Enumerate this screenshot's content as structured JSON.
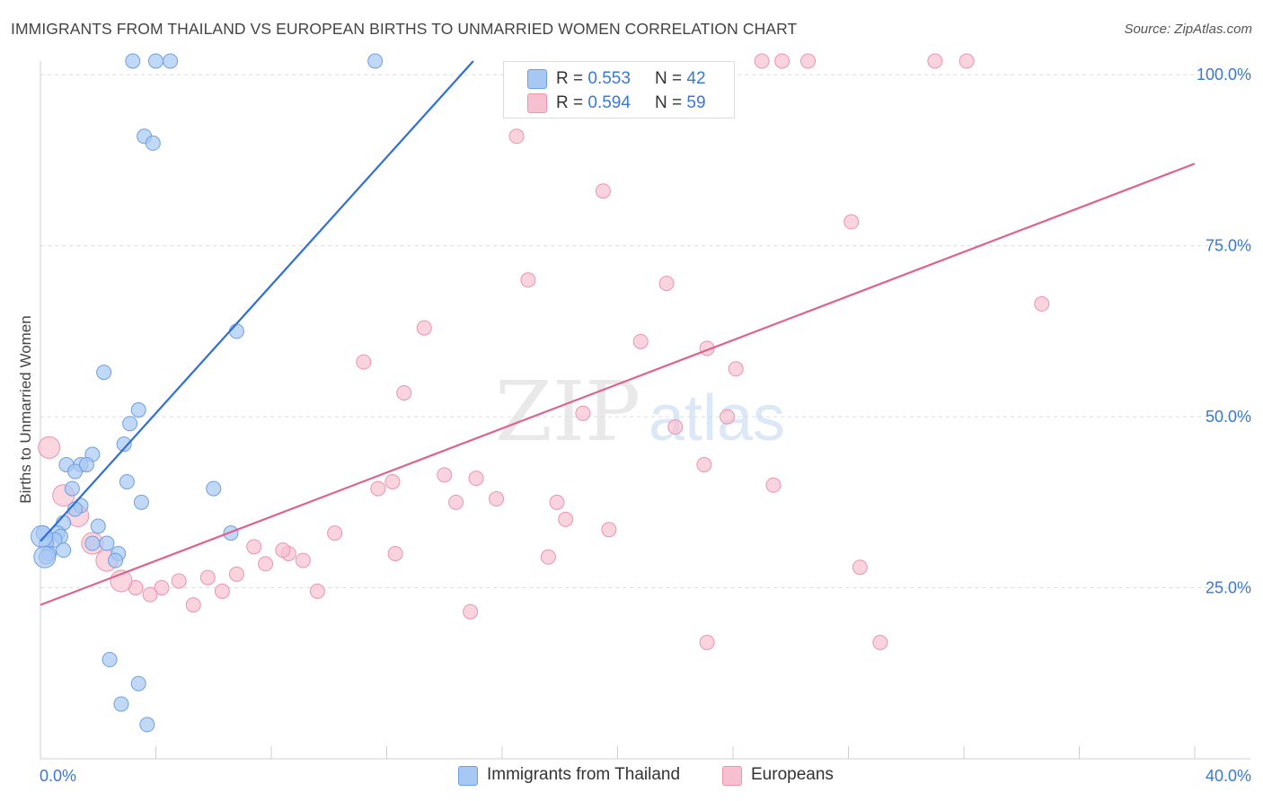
{
  "title": "IMMIGRANTS FROM THAILAND VS EUROPEAN BIRTHS TO UNMARRIED WOMEN CORRELATION CHART",
  "source": "Source: ZipAtlas.com",
  "watermark": {
    "zip": "ZIP",
    "atlas": "atlas"
  },
  "legend": {
    "rows": [
      {
        "r_label": "R =",
        "r_value": "0.553",
        "n_label": "N =",
        "n_value": "42",
        "color": "#a8c8f4"
      },
      {
        "r_label": "R =",
        "r_value": "0.594",
        "n_label": "N =",
        "n_value": "59",
        "color": "#f7b8cc"
      }
    ]
  },
  "bottom_legend": [
    {
      "label": "Immigrants from Thailand",
      "color": "#a8c8f4"
    },
    {
      "label": "Europeans",
      "color": "#f7b8cc"
    }
  ],
  "colors": {
    "blue_fill": "#a8c8f4",
    "blue_stroke": "#6e9fe0",
    "blue_line": "#2f6fd6",
    "pink_fill": "#f7c0d0",
    "pink_stroke": "#ec94b0",
    "pink_line": "#e0618c",
    "tick_text": "#3a78d6",
    "grid": "#dddddd"
  },
  "chart_data": {
    "type": "scatter",
    "title": "IMMIGRANTS FROM THAILAND VS EUROPEAN BIRTHS TO UNMARRIED WOMEN CORRELATION CHART",
    "xlabel": "",
    "ylabel": "Births to Unmarried Women",
    "xlim": [
      0,
      40
    ],
    "ylim": [
      0,
      102
    ],
    "x_tick_labels": [
      {
        "value": 0,
        "label": "0.0%"
      },
      {
        "value": 40,
        "label": "40.0%"
      }
    ],
    "y_tick_labels": [
      {
        "value": 25,
        "label": "25.0%"
      },
      {
        "value": 50,
        "label": "50.0%"
      },
      {
        "value": 75,
        "label": "75.0%"
      },
      {
        "value": 100,
        "label": "100.0%"
      }
    ],
    "grid": true,
    "legend_position": "top-center",
    "series": [
      {
        "name": "Immigrants from Thailand",
        "trend": [
          [
            0,
            31.8
          ],
          [
            15,
            102
          ]
        ],
        "points": [
          [
            3.2,
            102
          ],
          [
            4.0,
            102
          ],
          [
            4.5,
            102
          ],
          [
            11.6,
            102
          ],
          [
            3.6,
            91
          ],
          [
            3.9,
            90
          ],
          [
            6.8,
            62.5
          ],
          [
            2.2,
            56.5
          ],
          [
            3.4,
            51
          ],
          [
            3.1,
            49
          ],
          [
            2.9,
            46
          ],
          [
            1.8,
            44.5
          ],
          [
            0.9,
            43
          ],
          [
            1.4,
            43
          ],
          [
            1.2,
            42
          ],
          [
            1.6,
            43
          ],
          [
            3.0,
            40.5
          ],
          [
            6.0,
            39.5
          ],
          [
            1.1,
            39.5
          ],
          [
            3.5,
            37.5
          ],
          [
            1.4,
            37
          ],
          [
            1.2,
            36.5
          ],
          [
            0.8,
            34.5
          ],
          [
            2.0,
            34
          ],
          [
            0.6,
            33
          ],
          [
            0.1,
            33
          ],
          [
            0.7,
            32.5
          ],
          [
            0.5,
            32
          ],
          [
            0.2,
            31.5
          ],
          [
            6.6,
            33
          ],
          [
            1.8,
            31.5
          ],
          [
            2.3,
            31.5
          ],
          [
            0.8,
            30.5
          ],
          [
            2.7,
            30
          ],
          [
            0.3,
            30
          ],
          [
            0.2,
            29.5
          ],
          [
            2.6,
            29
          ],
          [
            2.4,
            14.5
          ],
          [
            3.4,
            11
          ],
          [
            2.8,
            8
          ],
          [
            3.7,
            5
          ]
        ],
        "big_points": [
          [
            0.05,
            32.5
          ],
          [
            0.15,
            29.5
          ]
        ]
      },
      {
        "name": "Europeans",
        "trend": [
          [
            0,
            22.5
          ],
          [
            40,
            87
          ]
        ],
        "points": [
          [
            25.0,
            102
          ],
          [
            25.7,
            102
          ],
          [
            26.6,
            102
          ],
          [
            31.0,
            102
          ],
          [
            32.1,
            102
          ],
          [
            16.5,
            91
          ],
          [
            19.5,
            83
          ],
          [
            28.1,
            78.5
          ],
          [
            16.9,
            70
          ],
          [
            21.7,
            69.5
          ],
          [
            34.7,
            66.5
          ],
          [
            13.3,
            63
          ],
          [
            20.8,
            61
          ],
          [
            23.1,
            60
          ],
          [
            11.2,
            58
          ],
          [
            24.1,
            57
          ],
          [
            12.6,
            53.5
          ],
          [
            18.8,
            50.5
          ],
          [
            22.0,
            48.5
          ],
          [
            23.8,
            50
          ],
          [
            23.0,
            43
          ],
          [
            25.4,
            40
          ],
          [
            11.7,
            39.5
          ],
          [
            12.2,
            40.5
          ],
          [
            14.0,
            41.5
          ],
          [
            15.1,
            41
          ],
          [
            15.8,
            38
          ],
          [
            17.9,
            37.5
          ],
          [
            14.4,
            37.5
          ],
          [
            18.2,
            35
          ],
          [
            19.7,
            33.5
          ],
          [
            10.2,
            33
          ],
          [
            17.6,
            29.5
          ],
          [
            28.4,
            28
          ],
          [
            7.4,
            31
          ],
          [
            7.8,
            28.5
          ],
          [
            8.6,
            30
          ],
          [
            8.4,
            30.5
          ],
          [
            9.1,
            29
          ],
          [
            12.3,
            30
          ],
          [
            6.8,
            27
          ],
          [
            5.8,
            26.5
          ],
          [
            4.8,
            26
          ],
          [
            4.2,
            25
          ],
          [
            3.3,
            25
          ],
          [
            3.8,
            24
          ],
          [
            6.3,
            24.5
          ],
          [
            9.6,
            24.5
          ],
          [
            5.3,
            22.5
          ],
          [
            14.9,
            21.5
          ],
          [
            23.1,
            17
          ],
          [
            29.1,
            17
          ]
        ],
        "big_points": [
          [
            0.3,
            45.5
          ],
          [
            0.8,
            38.5
          ],
          [
            1.3,
            35.5
          ],
          [
            1.8,
            31.5
          ],
          [
            2.3,
            29
          ],
          [
            2.8,
            26
          ]
        ]
      }
    ]
  }
}
